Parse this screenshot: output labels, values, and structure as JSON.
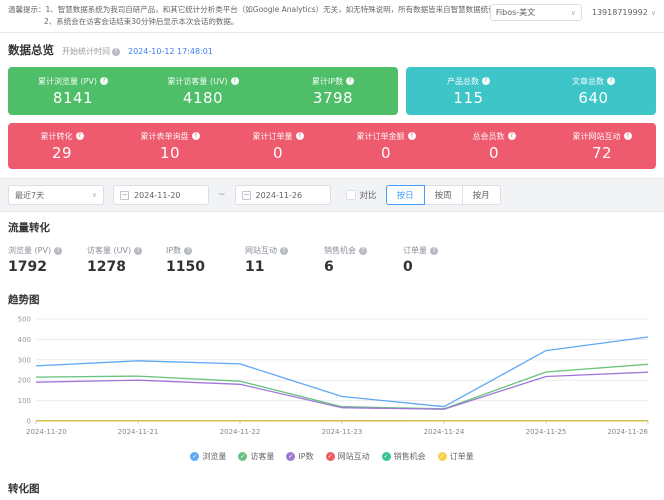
{
  "disclaimer": {
    "line1": "温馨提示：1、智慧数据系统为我司自研产品，和其它统计分析类平台（如Google Analytics）无关，如无特殊说明，所有数据皆来自智慧数据统计分析所得。",
    "line2": "2、系统会在访客会话结束30分钟后显示本次会话的数据。"
  },
  "topbar": {
    "site_select_value": "Fibos-美文",
    "account": "13918719992"
  },
  "overview": {
    "title": "数据总览",
    "start_label": "开始统计时间",
    "start_time": "2024-10-12 17:48:01",
    "green_stats": [
      {
        "label": "累计浏览量 (PV)",
        "value": "8141"
      },
      {
        "label": "累计访客量 (UV)",
        "value": "4180"
      },
      {
        "label": "累计IP数",
        "value": "3798"
      }
    ],
    "teal_stats": [
      {
        "label": "产品总数",
        "value": "115"
      },
      {
        "label": "文章总数",
        "value": "640"
      }
    ],
    "red_stats": [
      {
        "label": "累计转化",
        "value": "29"
      },
      {
        "label": "累计表单询盘",
        "value": "10"
      },
      {
        "label": "累计订单量",
        "value": "0"
      },
      {
        "label": "累计订单金额",
        "value": "0"
      },
      {
        "label": "总会员数",
        "value": "0"
      },
      {
        "label": "累计网站互动",
        "value": "72"
      }
    ],
    "colors": {
      "green": "#4fbe68",
      "teal": "#3ec5c8",
      "red": "#ee5b6e"
    }
  },
  "filters": {
    "range_select_value": "最近7天",
    "date_from": "2024-11-20",
    "separator": "~",
    "date_to": "2024-11-26",
    "compare_label": "对比",
    "granularity": [
      {
        "label": "按日",
        "active": true
      },
      {
        "label": "按周",
        "active": false
      },
      {
        "label": "按月",
        "active": false
      }
    ]
  },
  "traffic": {
    "title": "流量转化",
    "metrics": [
      {
        "label": "浏览量 (PV)",
        "value": "1792"
      },
      {
        "label": "访客量 (UV)",
        "value": "1278"
      },
      {
        "label": "IP数",
        "value": "1150"
      },
      {
        "label": "网站互动",
        "value": "11"
      },
      {
        "label": "销售机会",
        "value": "6"
      },
      {
        "label": "订单量",
        "value": "0"
      }
    ]
  },
  "trend": {
    "title": "趋势图"
  },
  "next_section": {
    "title": "转化图"
  },
  "chart_data": {
    "type": "line",
    "title": "趋势图",
    "x": [
      "2024-11-20",
      "2024-11-21",
      "2024-11-22",
      "2024-11-23",
      "2024-11-24",
      "2024-11-25",
      "2024-11-26"
    ],
    "series": [
      {
        "name": "浏览量",
        "color": "#5ea8f5",
        "values": [
          270,
          295,
          280,
          120,
          70,
          345,
          412
        ]
      },
      {
        "name": "访客量",
        "color": "#67c37d",
        "values": [
          215,
          220,
          195,
          70,
          60,
          240,
          278
        ]
      },
      {
        "name": "IP数",
        "color": "#9f77d6",
        "values": [
          190,
          200,
          180,
          65,
          58,
          218,
          239
        ]
      },
      {
        "name": "网站互动",
        "color": "#f05b5b",
        "values": [
          2,
          2,
          1,
          1,
          1,
          2,
          2
        ]
      },
      {
        "name": "销售机会",
        "color": "#34c39a",
        "values": [
          1,
          1,
          1,
          0,
          1,
          1,
          1
        ]
      },
      {
        "name": "订单量",
        "color": "#f6cf4b",
        "values": [
          0,
          0,
          0,
          0,
          0,
          0,
          0
        ]
      }
    ],
    "ylim": [
      0,
      500
    ],
    "yticks": [
      0,
      100,
      200,
      300,
      400,
      500
    ],
    "grid": true,
    "legend_position": "bottom",
    "legend_marker": "circle-check"
  }
}
